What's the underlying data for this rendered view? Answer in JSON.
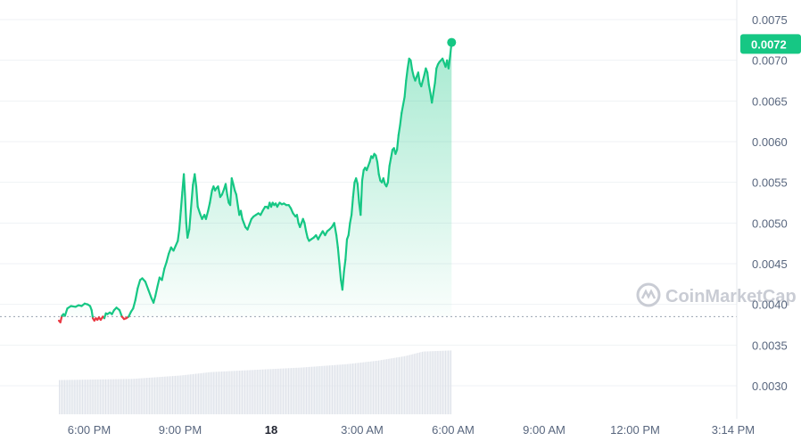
{
  "chart_data": {
    "type": "area",
    "baseline": 0.00385,
    "current_price": 0.0072,
    "current_price_label": "0.0072",
    "watermark": "CoinMarketCap",
    "ylim": [
      0.0026,
      0.0077
    ],
    "y_ticks": [
      {
        "value": 0.0075,
        "label": "0.0075"
      },
      {
        "value": 0.007,
        "label": "0.0070"
      },
      {
        "value": 0.0065,
        "label": "0.0065"
      },
      {
        "value": 0.006,
        "label": "0.0060"
      },
      {
        "value": 0.0055,
        "label": "0.0055"
      },
      {
        "value": 0.005,
        "label": "0.0050"
      },
      {
        "value": 0.0045,
        "label": "0.0045"
      },
      {
        "value": 0.004,
        "label": "0.0040"
      },
      {
        "value": 0.0035,
        "label": "0.0035"
      },
      {
        "value": 0.003,
        "label": "0.0030"
      }
    ],
    "x_ticks": [
      {
        "t": 18.0,
        "label": "6:00 PM",
        "bold": false
      },
      {
        "t": 21.0,
        "label": "9:00 PM",
        "bold": false
      },
      {
        "t": 24.0,
        "label": "18",
        "bold": true
      },
      {
        "t": 27.0,
        "label": "3:00 AM",
        "bold": false
      },
      {
        "t": 30.0,
        "label": "6:00 AM",
        "bold": false
      },
      {
        "t": 33.0,
        "label": "9:00 AM",
        "bold": false
      },
      {
        "t": 36.0,
        "label": "12:00 PM",
        "bold": false
      },
      {
        "t": 39.2333,
        "label": "3:14 PM",
        "bold": false
      }
    ],
    "xlim": [
      17.0,
      39.75
    ],
    "series": [
      {
        "points": [
          [
            17.0,
            0.0038
          ],
          [
            17.05,
            0.00378
          ],
          [
            17.1,
            0.00386
          ],
          [
            17.15,
            0.00388
          ],
          [
            17.2,
            0.00386
          ],
          [
            17.28,
            0.00395
          ],
          [
            17.4,
            0.00398
          ],
          [
            17.55,
            0.00397
          ],
          [
            17.65,
            0.00399
          ],
          [
            17.75,
            0.00398
          ],
          [
            17.85,
            0.00401
          ],
          [
            17.95,
            0.004
          ],
          [
            18.03,
            0.00398
          ],
          [
            18.08,
            0.00393
          ],
          [
            18.12,
            0.00383
          ],
          [
            18.17,
            0.0038
          ],
          [
            18.22,
            0.00383
          ],
          [
            18.27,
            0.00381
          ],
          [
            18.32,
            0.00384
          ],
          [
            18.38,
            0.00381
          ],
          [
            18.45,
            0.00385
          ],
          [
            18.5,
            0.00383
          ],
          [
            18.55,
            0.00389
          ],
          [
            18.6,
            0.00388
          ],
          [
            18.68,
            0.0039
          ],
          [
            18.75,
            0.00388
          ],
          [
            18.82,
            0.00393
          ],
          [
            18.9,
            0.00396
          ],
          [
            19.0,
            0.00393
          ],
          [
            19.08,
            0.00385
          ],
          [
            19.15,
            0.00382
          ],
          [
            19.22,
            0.00383
          ],
          [
            19.3,
            0.00385
          ],
          [
            19.38,
            0.00391
          ],
          [
            19.45,
            0.00395
          ],
          [
            19.52,
            0.00405
          ],
          [
            19.6,
            0.0042
          ],
          [
            19.68,
            0.0043
          ],
          [
            19.75,
            0.00432
          ],
          [
            19.85,
            0.00428
          ],
          [
            19.95,
            0.00418
          ],
          [
            20.05,
            0.00408
          ],
          [
            20.12,
            0.00402
          ],
          [
            20.18,
            0.0041
          ],
          [
            20.25,
            0.00422
          ],
          [
            20.32,
            0.00433
          ],
          [
            20.4,
            0.0043
          ],
          [
            20.48,
            0.00444
          ],
          [
            20.55,
            0.00452
          ],
          [
            20.62,
            0.00462
          ],
          [
            20.7,
            0.0047
          ],
          [
            20.78,
            0.00466
          ],
          [
            20.85,
            0.00472
          ],
          [
            20.92,
            0.00478
          ],
          [
            20.97,
            0.00492
          ],
          [
            21.02,
            0.00515
          ],
          [
            21.07,
            0.00538
          ],
          [
            21.12,
            0.0056
          ],
          [
            21.16,
            0.00535
          ],
          [
            21.2,
            0.005
          ],
          [
            21.24,
            0.00482
          ],
          [
            21.3,
            0.00492
          ],
          [
            21.35,
            0.00515
          ],
          [
            21.42,
            0.00547
          ],
          [
            21.48,
            0.0056
          ],
          [
            21.53,
            0.00545
          ],
          [
            21.58,
            0.0052
          ],
          [
            21.65,
            0.00512
          ],
          [
            21.72,
            0.00505
          ],
          [
            21.8,
            0.0051
          ],
          [
            21.85,
            0.00505
          ],
          [
            21.92,
            0.00515
          ],
          [
            21.98,
            0.00525
          ],
          [
            22.05,
            0.0054
          ],
          [
            22.1,
            0.00545
          ],
          [
            22.15,
            0.0054
          ],
          [
            22.2,
            0.00543
          ],
          [
            22.25,
            0.00545
          ],
          [
            22.32,
            0.00532
          ],
          [
            22.38,
            0.00535
          ],
          [
            22.45,
            0.00542
          ],
          [
            22.5,
            0.00548
          ],
          [
            22.55,
            0.00535
          ],
          [
            22.6,
            0.00525
          ],
          [
            22.65,
            0.00522
          ],
          [
            22.7,
            0.00555
          ],
          [
            22.75,
            0.00548
          ],
          [
            22.8,
            0.0054
          ],
          [
            22.85,
            0.00535
          ],
          [
            22.9,
            0.00522
          ],
          [
            22.95,
            0.0051
          ],
          [
            23.0,
            0.00515
          ],
          [
            23.05,
            0.00505
          ],
          [
            23.1,
            0.005
          ],
          [
            23.15,
            0.00495
          ],
          [
            23.22,
            0.00492
          ],
          [
            23.28,
            0.00498
          ],
          [
            23.35,
            0.00505
          ],
          [
            23.42,
            0.00508
          ],
          [
            23.5,
            0.0051
          ],
          [
            23.58,
            0.00512
          ],
          [
            23.65,
            0.0051
          ],
          [
            23.72,
            0.00515
          ],
          [
            23.8,
            0.0052
          ],
          [
            23.85,
            0.0052
          ],
          [
            23.9,
            0.00518
          ],
          [
            23.95,
            0.00525
          ],
          [
            24.0,
            0.0052
          ],
          [
            24.05,
            0.00525
          ],
          [
            24.1,
            0.00522
          ],
          [
            24.15,
            0.00524
          ],
          [
            24.2,
            0.0052
          ],
          [
            24.28,
            0.00525
          ],
          [
            24.35,
            0.00523
          ],
          [
            24.42,
            0.00524
          ],
          [
            24.5,
            0.00522
          ],
          [
            24.58,
            0.00522
          ],
          [
            24.65,
            0.00518
          ],
          [
            24.72,
            0.00512
          ],
          [
            24.8,
            0.00508
          ],
          [
            24.85,
            0.0051
          ],
          [
            24.9,
            0.005
          ],
          [
            24.95,
            0.00495
          ],
          [
            25.0,
            0.005
          ],
          [
            25.05,
            0.00505
          ],
          [
            25.1,
            0.005
          ],
          [
            25.15,
            0.0049
          ],
          [
            25.2,
            0.00482
          ],
          [
            25.25,
            0.00478
          ],
          [
            25.32,
            0.0048
          ],
          [
            25.4,
            0.00482
          ],
          [
            25.48,
            0.00485
          ],
          [
            25.55,
            0.0048
          ],
          [
            25.62,
            0.00485
          ],
          [
            25.7,
            0.0049
          ],
          [
            25.78,
            0.00485
          ],
          [
            25.85,
            0.0049
          ],
          [
            25.92,
            0.00492
          ],
          [
            26.0,
            0.00495
          ],
          [
            26.08,
            0.005
          ],
          [
            26.15,
            0.00485
          ],
          [
            26.2,
            0.0047
          ],
          [
            26.25,
            0.0045
          ],
          [
            26.3,
            0.0043
          ],
          [
            26.35,
            0.00418
          ],
          [
            26.4,
            0.0044
          ],
          [
            26.45,
            0.00455
          ],
          [
            26.5,
            0.0048
          ],
          [
            26.55,
            0.00485
          ],
          [
            26.6,
            0.005
          ],
          [
            26.65,
            0.0051
          ],
          [
            26.7,
            0.00532
          ],
          [
            26.75,
            0.0055
          ],
          [
            26.8,
            0.00555
          ],
          [
            26.85,
            0.00548
          ],
          [
            26.9,
            0.00525
          ],
          [
            26.95,
            0.0051
          ],
          [
            27.0,
            0.00552
          ],
          [
            27.05,
            0.00565
          ],
          [
            27.1,
            0.00568
          ],
          [
            27.15,
            0.00565
          ],
          [
            27.2,
            0.0057
          ],
          [
            27.25,
            0.00575
          ],
          [
            27.3,
            0.00582
          ],
          [
            27.35,
            0.0058
          ],
          [
            27.4,
            0.00585
          ],
          [
            27.45,
            0.00583
          ],
          [
            27.5,
            0.00575
          ],
          [
            27.55,
            0.0056
          ],
          [
            27.6,
            0.00552
          ],
          [
            27.65,
            0.0055
          ],
          [
            27.7,
            0.00555
          ],
          [
            27.75,
            0.00548
          ],
          [
            27.8,
            0.00545
          ],
          [
            27.85,
            0.0055
          ],
          [
            27.9,
            0.0057
          ],
          [
            27.95,
            0.0058
          ],
          [
            28.0,
            0.0059
          ],
          [
            28.05,
            0.00592
          ],
          [
            28.1,
            0.00585
          ],
          [
            28.15,
            0.0059
          ],
          [
            28.2,
            0.00608
          ],
          [
            28.25,
            0.0062
          ],
          [
            28.3,
            0.00635
          ],
          [
            28.35,
            0.00645
          ],
          [
            28.4,
            0.00655
          ],
          [
            28.45,
            0.00675
          ],
          [
            28.5,
            0.0069
          ],
          [
            28.55,
            0.00702
          ],
          [
            28.6,
            0.007
          ],
          [
            28.65,
            0.00688
          ],
          [
            28.7,
            0.0068
          ],
          [
            28.75,
            0.00675
          ],
          [
            28.8,
            0.0068
          ],
          [
            28.85,
            0.00685
          ],
          [
            28.9,
            0.00672
          ],
          [
            28.95,
            0.00668
          ],
          [
            29.0,
            0.00675
          ],
          [
            29.05,
            0.00682
          ],
          [
            29.1,
            0.0069
          ],
          [
            29.15,
            0.00685
          ],
          [
            29.2,
            0.0067
          ],
          [
            29.25,
            0.0066
          ],
          [
            29.3,
            0.00648
          ],
          [
            29.35,
            0.0066
          ],
          [
            29.4,
            0.00672
          ],
          [
            29.45,
            0.0069
          ],
          [
            29.5,
            0.00695
          ],
          [
            29.55,
            0.00698
          ],
          [
            29.6,
            0.007
          ],
          [
            29.65,
            0.00702
          ],
          [
            29.7,
            0.00697
          ],
          [
            29.75,
            0.00692
          ],
          [
            29.8,
            0.007
          ],
          [
            29.85,
            0.0069
          ],
          [
            29.9,
            0.00705
          ],
          [
            29.95,
            0.00722
          ]
        ]
      }
    ],
    "volume": [
      [
        17.0,
        0.3
      ],
      [
        19.4,
        0.31
      ],
      [
        21.0,
        0.34
      ],
      [
        22.0,
        0.37
      ],
      [
        23.5,
        0.39
      ],
      [
        25.0,
        0.41
      ],
      [
        26.5,
        0.44
      ],
      [
        27.5,
        0.47
      ],
      [
        28.4,
        0.51
      ],
      [
        29.0,
        0.55
      ],
      [
        29.95,
        0.56
      ]
    ]
  }
}
